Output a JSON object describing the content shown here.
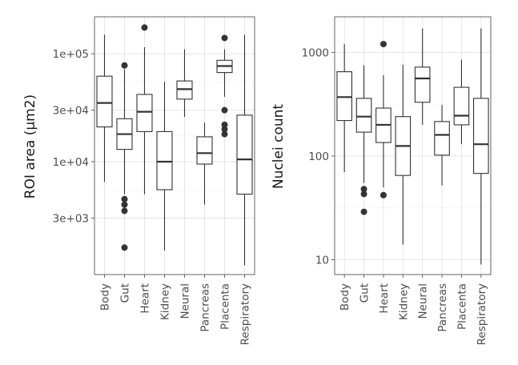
{
  "chart_data": [
    {
      "type": "box",
      "ylabel": "ROI area (μm2)",
      "xlabel": "",
      "yscale": "log10",
      "ylim": [
        900,
        220000
      ],
      "yticks": [
        {
          "value": 3000,
          "label": "3e+03"
        },
        {
          "value": 10000,
          "label": "1e+04"
        },
        {
          "value": 30000,
          "label": "3e+04"
        },
        {
          "value": 100000,
          "label": "1e+05"
        }
      ],
      "categories": [
        "Body",
        "Gut",
        "Heart",
        "Kidney",
        "Neural",
        "Pancreas",
        "Placenta",
        "Respiratory"
      ],
      "boxes": [
        {
          "category": "Body",
          "whislo": 6500,
          "q1": 21000,
          "median": 35000,
          "q3": 62000,
          "whishi": 150000,
          "outliers": []
        },
        {
          "category": "Gut",
          "whislo": 5000,
          "q1": 13000,
          "median": 18000,
          "q3": 25000,
          "whishi": 72000,
          "outliers": [
            78000,
            4500,
            4000,
            3500,
            1600
          ]
        },
        {
          "category": "Heart",
          "whislo": 5000,
          "q1": 19000,
          "median": 29000,
          "q3": 42000,
          "whishi": 115000,
          "outliers": [
            175000
          ]
        },
        {
          "category": "Kidney",
          "whislo": 1500,
          "q1": 5500,
          "median": 10000,
          "q3": 19000,
          "whishi": 55000,
          "outliers": []
        },
        {
          "category": "Neural",
          "whislo": 26000,
          "q1": 38000,
          "median": 47000,
          "q3": 56000,
          "whishi": 110000,
          "outliers": []
        },
        {
          "category": "Pancreas",
          "whislo": 4000,
          "q1": 9500,
          "median": 12000,
          "q3": 17000,
          "whishi": 23000,
          "outliers": []
        },
        {
          "category": "Placenta",
          "whislo": 40000,
          "q1": 67000,
          "median": 77000,
          "q3": 87000,
          "whishi": 110000,
          "outliers": [
            140000,
            30000,
            22000,
            20000,
            18000
          ]
        },
        {
          "category": "Respiratory",
          "whislo": 1100,
          "q1": 5000,
          "median": 10500,
          "q3": 27000,
          "whishi": 150000,
          "outliers": []
        }
      ]
    },
    {
      "type": "box",
      "ylabel": "Nuclei count",
      "xlabel": "",
      "yscale": "log10",
      "ylim": [
        7.2,
        2200
      ],
      "yticks": [
        {
          "value": 10,
          "label": "10"
        },
        {
          "value": 100,
          "label": "100"
        },
        {
          "value": 1000,
          "label": "1000"
        }
      ],
      "categories": [
        "Body",
        "Gut",
        "Heart",
        "Kidney",
        "Neural",
        "Pancreas",
        "Placenta",
        "Respiratory"
      ],
      "boxes": [
        {
          "category": "Body",
          "whislo": 70,
          "q1": 220,
          "median": 370,
          "q3": 650,
          "whishi": 1200,
          "outliers": []
        },
        {
          "category": "Gut",
          "whislo": 55,
          "q1": 170,
          "median": 240,
          "q3": 360,
          "whishi": 750,
          "outliers": [
            48,
            43,
            29
          ]
        },
        {
          "category": "Heart",
          "whislo": 50,
          "q1": 135,
          "median": 200,
          "q3": 290,
          "whishi": 600,
          "outliers": [
            1200,
            42
          ]
        },
        {
          "category": "Kidney",
          "whislo": 14,
          "q1": 65,
          "median": 125,
          "q3": 240,
          "whishi": 760,
          "outliers": []
        },
        {
          "category": "Neural",
          "whislo": 200,
          "q1": 330,
          "median": 560,
          "q3": 720,
          "whishi": 1700,
          "outliers": []
        },
        {
          "category": "Pancreas",
          "whislo": 52,
          "q1": 102,
          "median": 160,
          "q3": 215,
          "whishi": 310,
          "outliers": []
        },
        {
          "category": "Placenta",
          "whislo": 130,
          "q1": 200,
          "median": 245,
          "q3": 460,
          "whishi": 850,
          "outliers": []
        },
        {
          "category": "Respiratory",
          "whislo": 9,
          "q1": 68,
          "median": 130,
          "q3": 360,
          "whishi": 1700,
          "outliers": []
        }
      ]
    }
  ]
}
